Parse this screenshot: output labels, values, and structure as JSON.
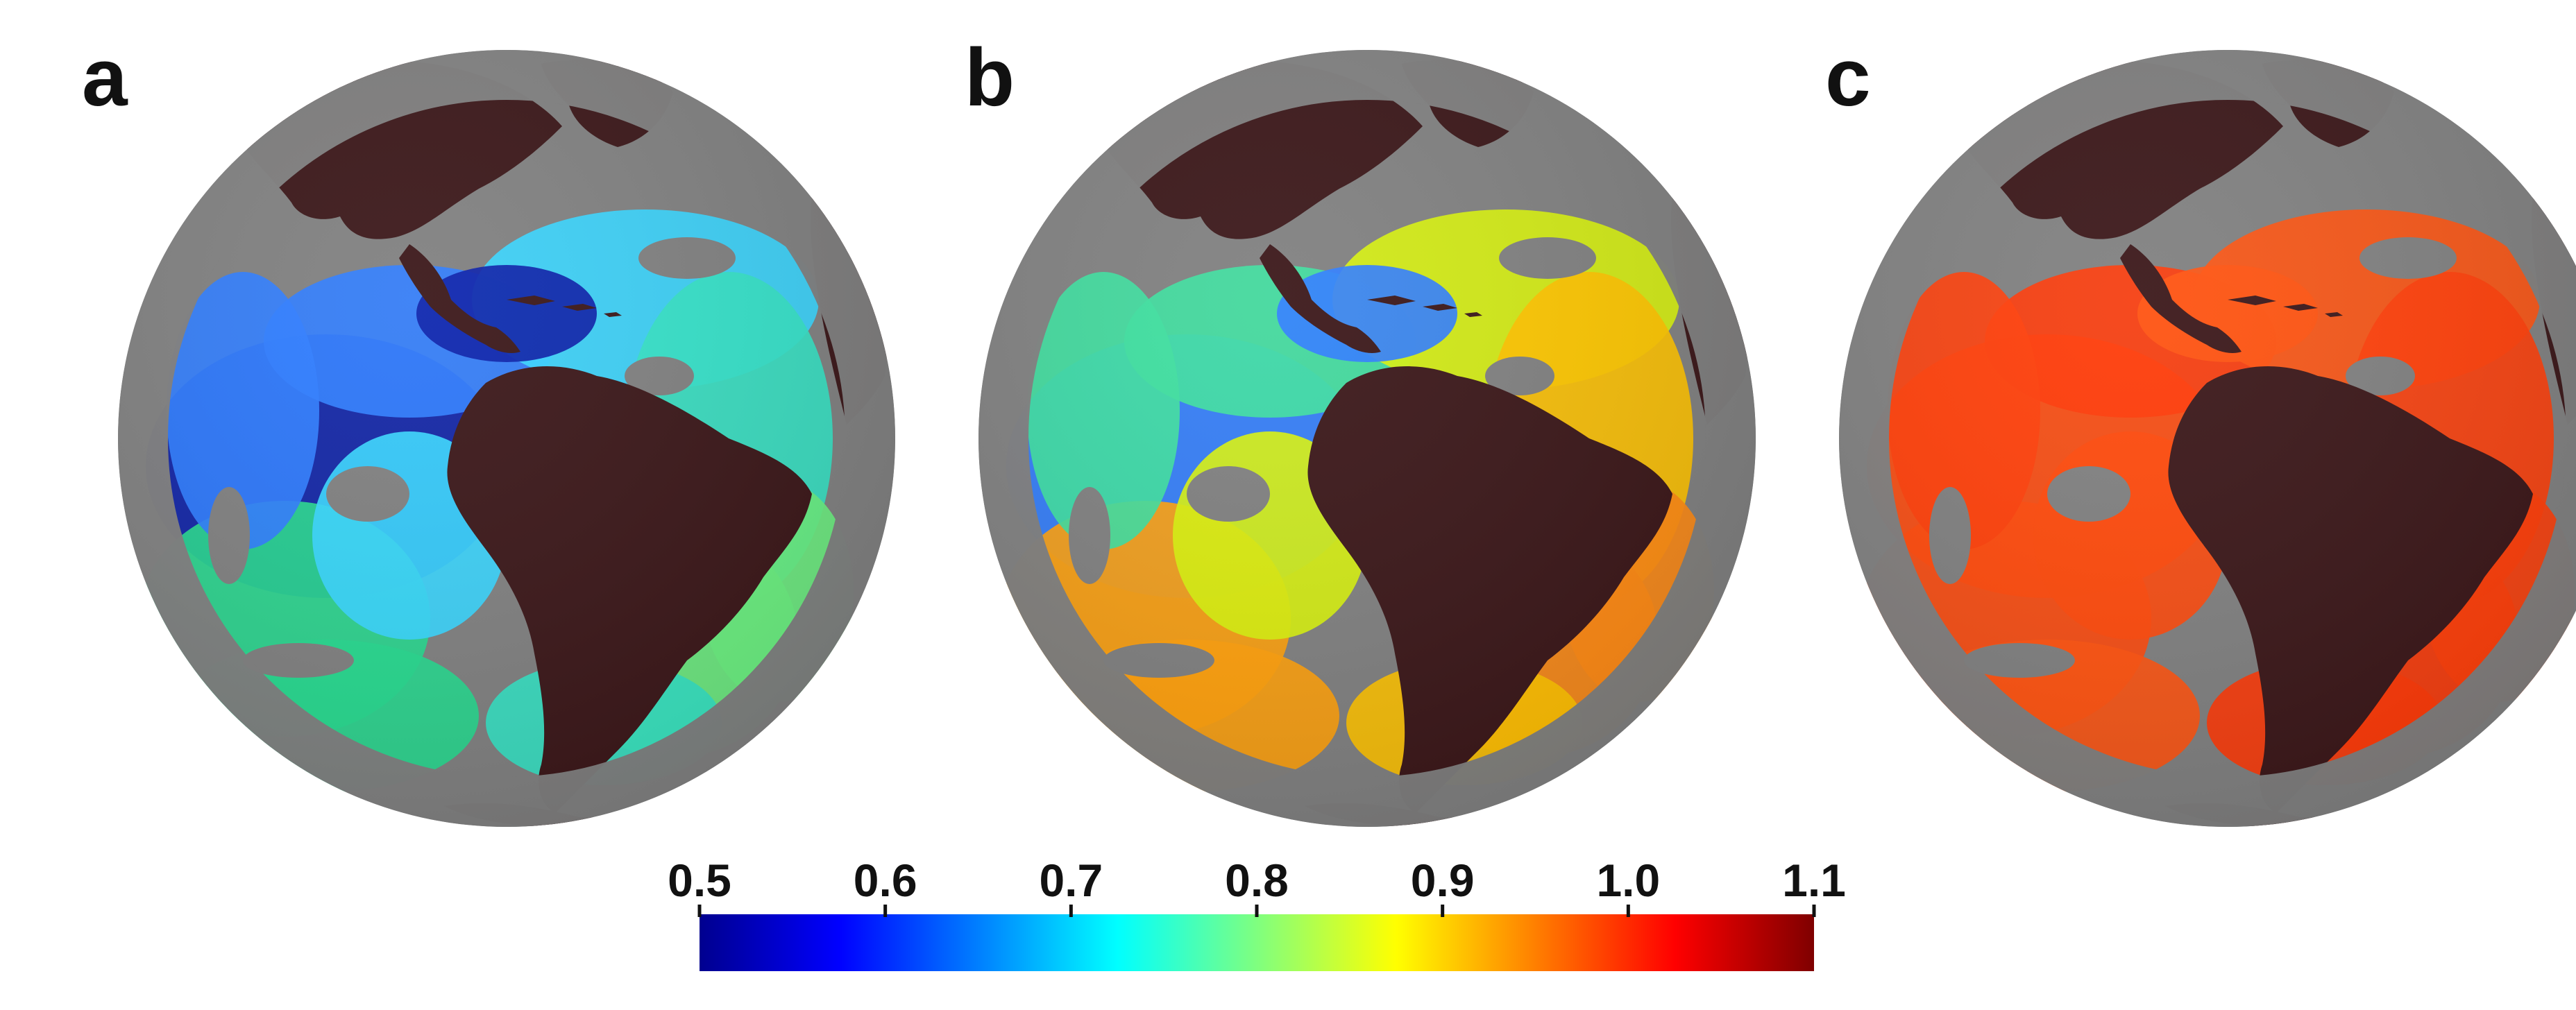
{
  "panels": [
    {
      "label": "a",
      "ocean_colors": [
        "#0a1ea8",
        "#2f7dff",
        "#38d6ff",
        "#35e3c4",
        "#27d98f",
        "#6bf080"
      ]
    },
    {
      "label": "b",
      "ocean_colors": [
        "#2f7dff",
        "#3ee0a0",
        "#d8f20e",
        "#ffc200",
        "#ffa10c",
        "#ff8a14"
      ]
    },
    {
      "label": "c",
      "ocean_colors": [
        "#ff4a0c",
        "#ff3a08",
        "#ff5410",
        "#ff3f0a"
      ]
    }
  ],
  "map_colors": {
    "land": "#3b1719",
    "background": "#808080",
    "frame_white": "#ffffff"
  },
  "colorbar": {
    "ticks": [
      "0.5",
      "0.6",
      "0.7",
      "0.8",
      "0.9",
      "1.0",
      "1.1"
    ],
    "colormap": "jet",
    "colors": [
      "#00008f",
      "#0000ff",
      "#007fff",
      "#00ffff",
      "#7fff7f",
      "#ffff00",
      "#ff7f00",
      "#ff0000",
      "#7f0000"
    ]
  }
}
